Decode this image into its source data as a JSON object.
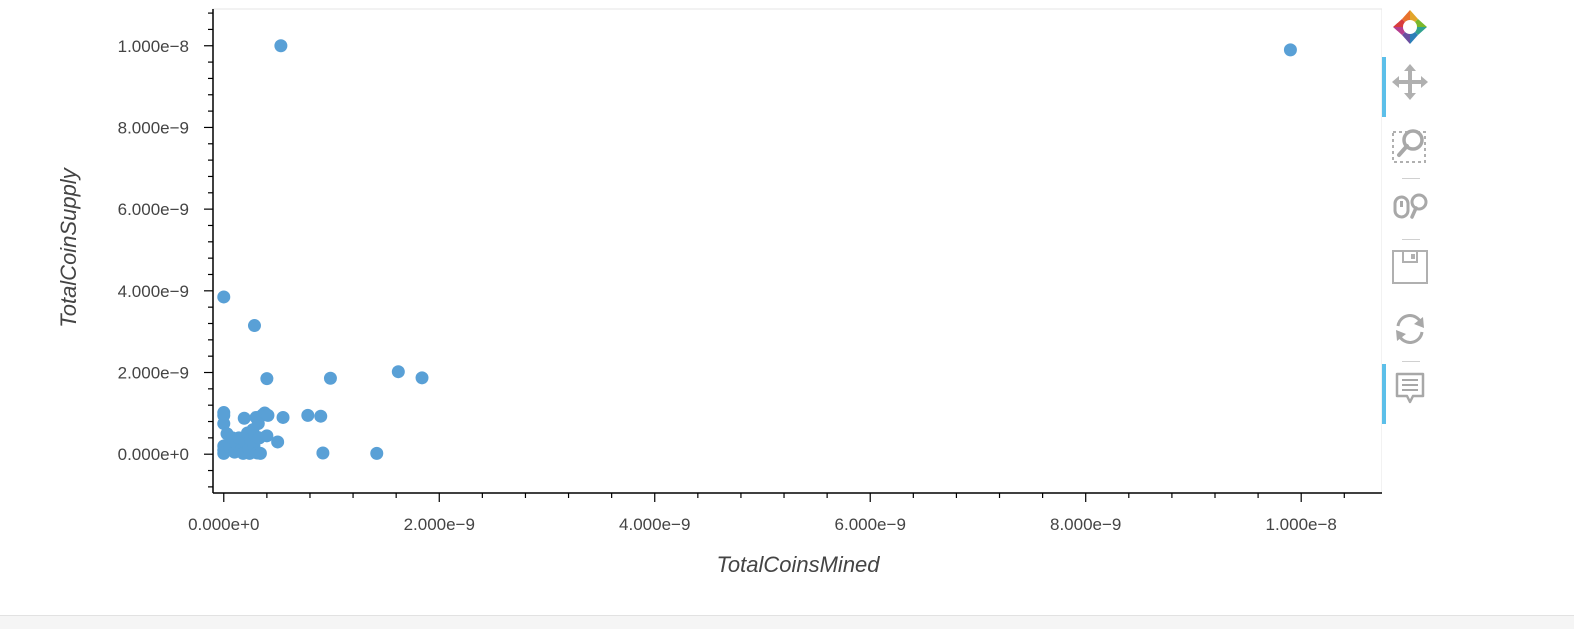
{
  "chart_data": {
    "type": "scatter",
    "xlabel": "TotalCoinsMined",
    "ylabel": "TotalCoinSupply",
    "xlim": [
      -1e-10,
      1.075e-08
    ],
    "ylim": [
      -9.5e-10,
      1.09e-08
    ],
    "x_ticks": [
      {
        "value": 0,
        "label": "0.000e+0"
      },
      {
        "value": 2e-09,
        "label": "2.000e−9"
      },
      {
        "value": 4e-09,
        "label": "4.000e−9"
      },
      {
        "value": 6e-09,
        "label": "6.000e−9"
      },
      {
        "value": 8e-09,
        "label": "8.000e−9"
      },
      {
        "value": 1e-08,
        "label": "1.000e−8"
      }
    ],
    "y_ticks": [
      {
        "value": 0,
        "label": "0.000e+0"
      },
      {
        "value": 2e-09,
        "label": "2.000e−9"
      },
      {
        "value": 4e-09,
        "label": "4.000e−9"
      },
      {
        "value": 6e-09,
        "label": "6.000e−9"
      },
      {
        "value": 8e-09,
        "label": "8.000e−9"
      },
      {
        "value": 1e-08,
        "label": "1.000e−8"
      }
    ],
    "grid": false,
    "point_color": "#59a0d6",
    "points": [
      {
        "x": 5.3e-10,
        "y": 1e-08
      },
      {
        "x": 9.9e-09,
        "y": 9.9e-09
      },
      {
        "x": 0.0,
        "y": 3.85e-09
      },
      {
        "x": 2.85e-10,
        "y": 3.15e-09
      },
      {
        "x": 4e-10,
        "y": 1.85e-09
      },
      {
        "x": 9.9e-10,
        "y": 1.86e-09
      },
      {
        "x": 1.62e-09,
        "y": 2.02e-09
      },
      {
        "x": 1.84e-09,
        "y": 1.87e-09
      },
      {
        "x": 0.0,
        "y": 1.02e-09
      },
      {
        "x": 0.0,
        "y": 9.5e-10
      },
      {
        "x": 0.0,
        "y": 7.5e-10
      },
      {
        "x": 0.0,
        "y": 2e-10
      },
      {
        "x": 0.0,
        "y": 1e-10
      },
      {
        "x": 0.0,
        "y": 2e-11
      },
      {
        "x": 3e-11,
        "y": 5e-10
      },
      {
        "x": 6e-11,
        "y": 1.5e-10
      },
      {
        "x": 8e-11,
        "y": 4e-10
      },
      {
        "x": 1e-10,
        "y": 5e-11
      },
      {
        "x": 1.2e-10,
        "y": 2.5e-10
      },
      {
        "x": 1.4e-10,
        "y": 4e-10
      },
      {
        "x": 1.6e-10,
        "y": 1e-10
      },
      {
        "x": 1.8e-10,
        "y": 2e-11
      },
      {
        "x": 1.9e-10,
        "y": 8.8e-10
      },
      {
        "x": 2e-10,
        "y": 3e-10
      },
      {
        "x": 2.2e-10,
        "y": 5.2e-10
      },
      {
        "x": 2.3e-10,
        "y": 1.2e-10
      },
      {
        "x": 2.4e-10,
        "y": 2e-11
      },
      {
        "x": 2.5e-10,
        "y": 3.5e-10
      },
      {
        "x": 2.7e-10,
        "y": 6e-10
      },
      {
        "x": 2.8e-10,
        "y": 2e-10
      },
      {
        "x": 2.9e-10,
        "y": 4.5e-10
      },
      {
        "x": 3e-10,
        "y": 9e-10
      },
      {
        "x": 3.1e-10,
        "y": 3e-11
      },
      {
        "x": 3.2e-10,
        "y": 7.5e-10
      },
      {
        "x": 3.3e-10,
        "y": 4e-10
      },
      {
        "x": 3.4e-10,
        "y": 2e-11
      },
      {
        "x": 3.6e-10,
        "y": 9.6e-10
      },
      {
        "x": 3.8e-10,
        "y": 1.01e-09
      },
      {
        "x": 4e-10,
        "y": 4.5e-10
      },
      {
        "x": 4.1e-10,
        "y": 9.5e-10
      },
      {
        "x": 5e-10,
        "y": 3e-10
      },
      {
        "x": 5.5e-10,
        "y": 9e-10
      },
      {
        "x": 7.8e-10,
        "y": 9.5e-10
      },
      {
        "x": 9e-10,
        "y": 9.3e-10
      },
      {
        "x": 9.2e-10,
        "y": 3e-11
      },
      {
        "x": 1.42e-09,
        "y": 2e-11
      }
    ]
  },
  "toolbar": {
    "tools": [
      {
        "name": "bokeh-logo",
        "active": false
      },
      {
        "name": "pan-tool",
        "active": true
      },
      {
        "name": "box-zoom-tool",
        "active": false
      },
      {
        "name": "wheel-zoom-tool",
        "active": false
      },
      {
        "name": "save-tool",
        "active": false
      },
      {
        "name": "reset-tool",
        "active": false
      },
      {
        "name": "hover-tool",
        "active": true
      }
    ]
  }
}
